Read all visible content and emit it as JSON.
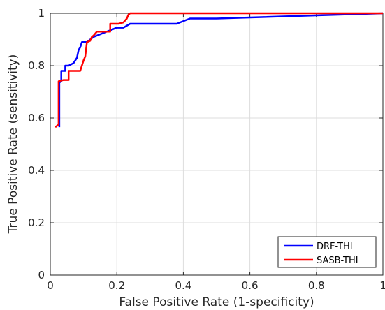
{
  "chart_data": {
    "type": "line",
    "title": "",
    "xlabel": "False Positive Rate (1-specificity)",
    "ylabel": "True Positive Rate (sensitivity)",
    "xlim": [
      0,
      1
    ],
    "ylim": [
      0,
      1
    ],
    "xticks": [
      0,
      0.2,
      0.4,
      0.6,
      0.8,
      1
    ],
    "yticks": [
      0,
      0.2,
      0.4,
      0.6,
      0.8,
      1
    ],
    "xtick_labels": [
      "0",
      "0.2",
      "0.4",
      "0.6",
      "0.8",
      "1"
    ],
    "ytick_labels": [
      "0",
      "0.2",
      "0.4",
      "0.6",
      "0.8",
      "1"
    ],
    "grid": true,
    "legend_position": "bottom-right",
    "series": [
      {
        "name": "DRF-THI",
        "color": "#0000ff",
        "x": [
          0.027,
          0.027,
          0.033,
          0.033,
          0.045,
          0.045,
          0.055,
          0.055,
          0.07,
          0.08,
          0.085,
          0.09,
          0.095,
          0.11,
          0.13,
          0.16,
          0.2,
          0.22,
          0.24,
          0.38,
          0.42,
          0.5,
          1.0
        ],
        "y": [
          0.565,
          0.735,
          0.74,
          0.78,
          0.78,
          0.8,
          0.8,
          0.8,
          0.81,
          0.83,
          0.86,
          0.87,
          0.89,
          0.89,
          0.91,
          0.925,
          0.945,
          0.945,
          0.96,
          0.96,
          0.98,
          0.98,
          1.0
        ]
      },
      {
        "name": "SASB-THI",
        "color": "#ff0000",
        "x": [
          0.015,
          0.025,
          0.025,
          0.04,
          0.055,
          0.055,
          0.09,
          0.095,
          0.1,
          0.105,
          0.11,
          0.12,
          0.125,
          0.13,
          0.14,
          0.18,
          0.18,
          0.205,
          0.22,
          0.23,
          0.235,
          0.24,
          1.0
        ],
        "y": [
          0.565,
          0.575,
          0.74,
          0.745,
          0.745,
          0.78,
          0.78,
          0.8,
          0.82,
          0.835,
          0.89,
          0.895,
          0.91,
          0.915,
          0.93,
          0.93,
          0.96,
          0.96,
          0.965,
          0.98,
          0.995,
          1.0,
          1.0
        ]
      }
    ]
  }
}
